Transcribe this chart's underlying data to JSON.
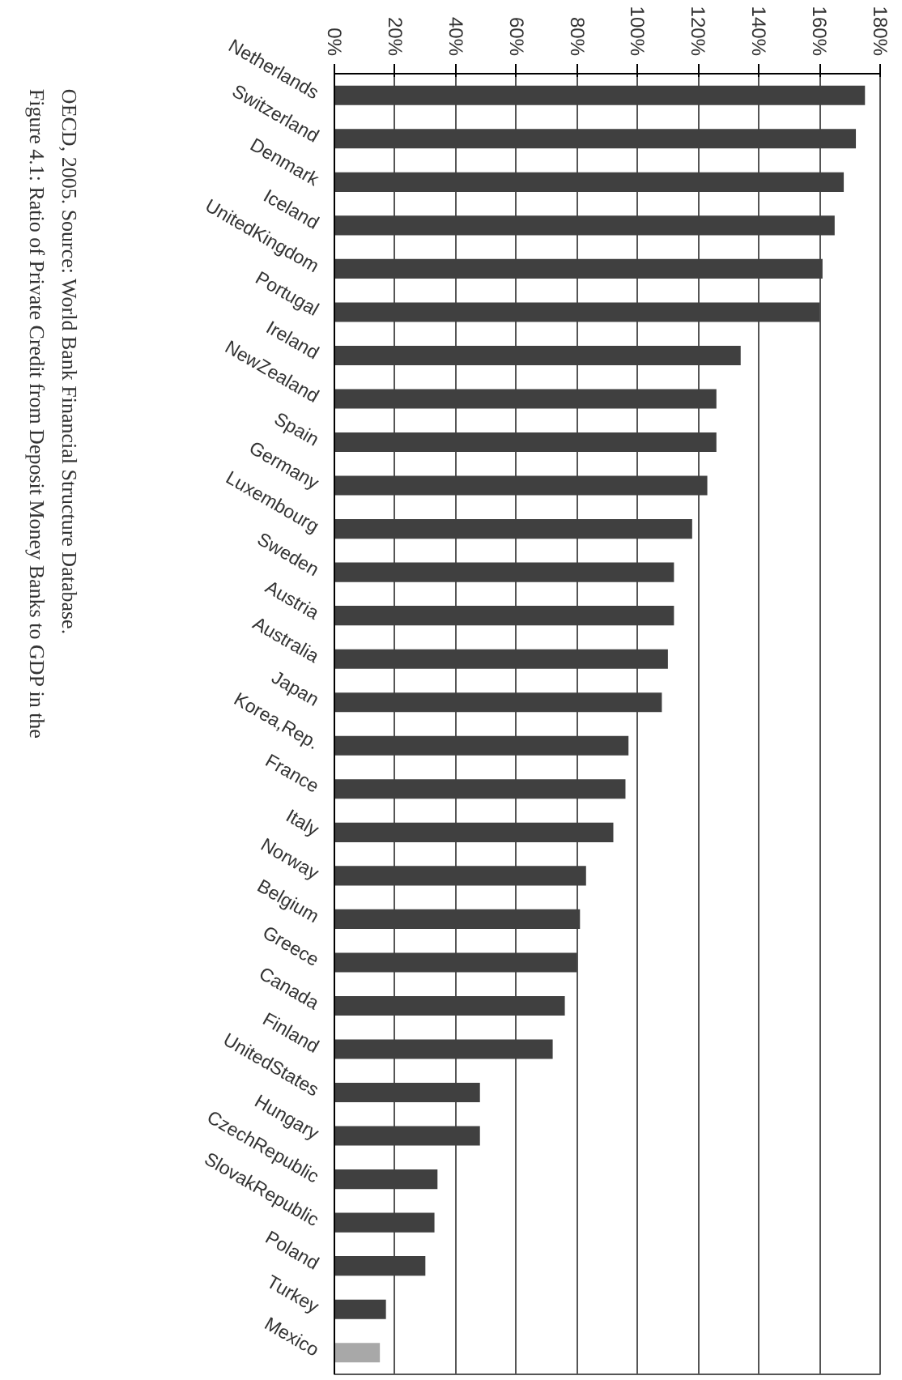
{
  "chart_data": {
    "type": "bar",
    "orientation": "horizontal",
    "title": "Figure 4.1: Ratio of Private Credit from Deposit Money Banks to GDP in the",
    "annotations": [
      "OECD, 2005. Source: World Bank Financial Structure Database."
    ],
    "categories": [
      "Netherlands",
      "Switzerland",
      "Denmark",
      "Iceland",
      "UnitedKingdom",
      "Portugal",
      "Ireland",
      "NewZealand",
      "Spain",
      "Germany",
      "Luxembourg",
      "Sweden",
      "Austria",
      "Australia",
      "Japan",
      "Korea,Rep.",
      "France",
      "Italy",
      "Norway",
      "Belgium",
      "Greece",
      "Canada",
      "Finland",
      "UnitedStates",
      "Hungary",
      "CzechRepublic",
      "SlovakRepublic",
      "Poland",
      "Turkey",
      "Mexico"
    ],
    "values": [
      175,
      172,
      168,
      165,
      161,
      160,
      134,
      126,
      126,
      123,
      118,
      112,
      112,
      110,
      108,
      97,
      96,
      92,
      83,
      81,
      80,
      76,
      72,
      48,
      48,
      34,
      33,
      30,
      17,
      15
    ],
    "colors": [
      "#404040",
      "#404040",
      "#404040",
      "#404040",
      "#404040",
      "#404040",
      "#404040",
      "#404040",
      "#404040",
      "#404040",
      "#404040",
      "#404040",
      "#404040",
      "#404040",
      "#404040",
      "#404040",
      "#404040",
      "#404040",
      "#404040",
      "#404040",
      "#404040",
      "#404040",
      "#404040",
      "#404040",
      "#404040",
      "#404040",
      "#404040",
      "#404040",
      "#404040",
      "#a8a8a8"
    ],
    "xlim": [
      0,
      180
    ],
    "xticks": [
      {
        "value": 0,
        "label": "0%"
      },
      {
        "value": 20,
        "label": "20%"
      },
      {
        "value": 40,
        "label": "40%"
      },
      {
        "value": 60,
        "label": "60%"
      },
      {
        "value": 80,
        "label": "80%"
      },
      {
        "value": 100,
        "label": "100%"
      },
      {
        "value": 120,
        "label": "120%"
      },
      {
        "value": 140,
        "label": "140%"
      },
      {
        "value": 160,
        "label": "160%"
      },
      {
        "value": 180,
        "label": "180%"
      }
    ],
    "grid": "x"
  }
}
